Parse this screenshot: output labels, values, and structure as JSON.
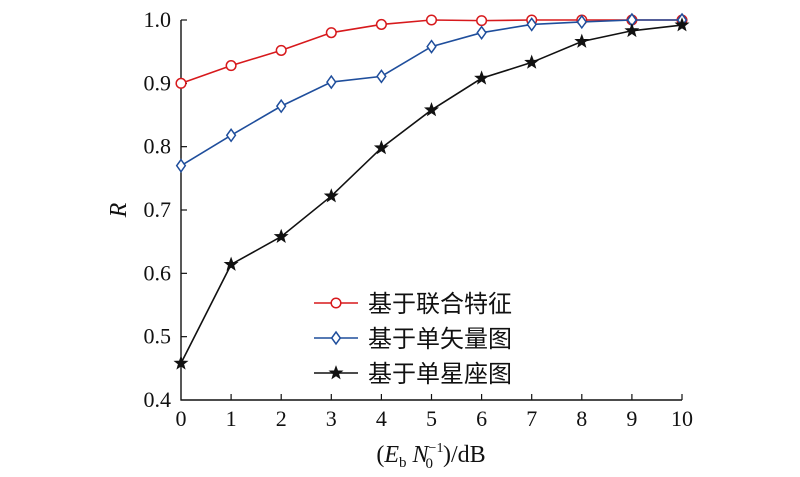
{
  "chart_data": {
    "type": "line",
    "title": "",
    "ylabel": "R",
    "xlabel": {
      "open": "(",
      "e_main": "E",
      "e_sub": "b",
      "n_main": "N",
      "n_sub": "0",
      "n_sup": "−1",
      "close": ")/dB"
    },
    "x": [
      0,
      1,
      2,
      3,
      4,
      5,
      6,
      7,
      8,
      9,
      10
    ],
    "xlim": [
      0,
      10
    ],
    "ylim": [
      0.4,
      1.0
    ],
    "x_ticks": [
      "0",
      "1",
      "2",
      "3",
      "4",
      "5",
      "6",
      "7",
      "8",
      "9",
      "10"
    ],
    "y_ticks": [
      "0.4",
      "0.5",
      "0.6",
      "0.7",
      "0.8",
      "0.9",
      "1.0"
    ],
    "grid": false,
    "legend_position": "lower-right",
    "series": [
      {
        "name": "基于联合特征",
        "color": "#d7191c",
        "marker": "circle",
        "values": [
          0.9,
          0.928,
          0.952,
          0.98,
          0.993,
          1.0,
          0.999,
          1.0,
          1.0,
          1.0,
          1.0
        ]
      },
      {
        "name": "基于单矢量图",
        "color": "#1f4e9c",
        "marker": "diamond",
        "values": [
          0.77,
          0.818,
          0.864,
          0.902,
          0.911,
          0.958,
          0.98,
          0.993,
          0.997,
          1.0,
          1.0
        ]
      },
      {
        "name": "基于单星座图",
        "color": "#111111",
        "marker": "star",
        "values": [
          0.458,
          0.614,
          0.658,
          0.722,
          0.798,
          0.858,
          0.908,
          0.933,
          0.966,
          0.983,
          0.992
        ]
      }
    ]
  }
}
